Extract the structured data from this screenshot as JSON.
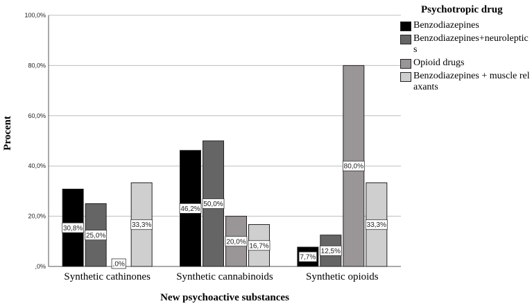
{
  "chart_data": {
    "type": "bar",
    "title": "",
    "xlabel": "New psychoactive substances",
    "ylabel": "Procent",
    "ylim": [
      0,
      100
    ],
    "yticks": [
      "100,0%",
      "80,0%",
      "60,0%",
      "40,0%",
      "20,0%",
      ",0%"
    ],
    "ytick_values": [
      100,
      80,
      60,
      40,
      20,
      0
    ],
    "grid": true,
    "legend_title": "Psychotropic drug",
    "legend_position": "top-right",
    "categories": [
      "Synthetic cathinones",
      "Synthetic cannabinoids",
      "Synthetic opioids"
    ],
    "series": [
      {
        "name": "Benzodiazepines",
        "color": "#000000",
        "values": [
          30.8,
          46.2,
          7.7
        ],
        "labels": [
          "30,8%",
          "46,2%",
          "7,7%"
        ]
      },
      {
        "name": "Benzodiazepines+neuroleptics",
        "color": "#656565",
        "values": [
          25.0,
          50.0,
          12.5
        ],
        "labels": [
          "25,0%",
          "50,0%",
          "12,5%"
        ]
      },
      {
        "name": "Opioid drugs",
        "color": "#9a9596",
        "values": [
          0.0,
          20.0,
          80.0
        ],
        "labels": [
          ",0%",
          "20,0%",
          "80,0%"
        ]
      },
      {
        "name": "Benzodiazepines + muscle relaxants",
        "color": "#cfcfcf",
        "values": [
          33.3,
          16.7,
          33.3
        ],
        "labels": [
          "33,3%",
          "16,7%",
          "33,3%"
        ]
      }
    ]
  }
}
